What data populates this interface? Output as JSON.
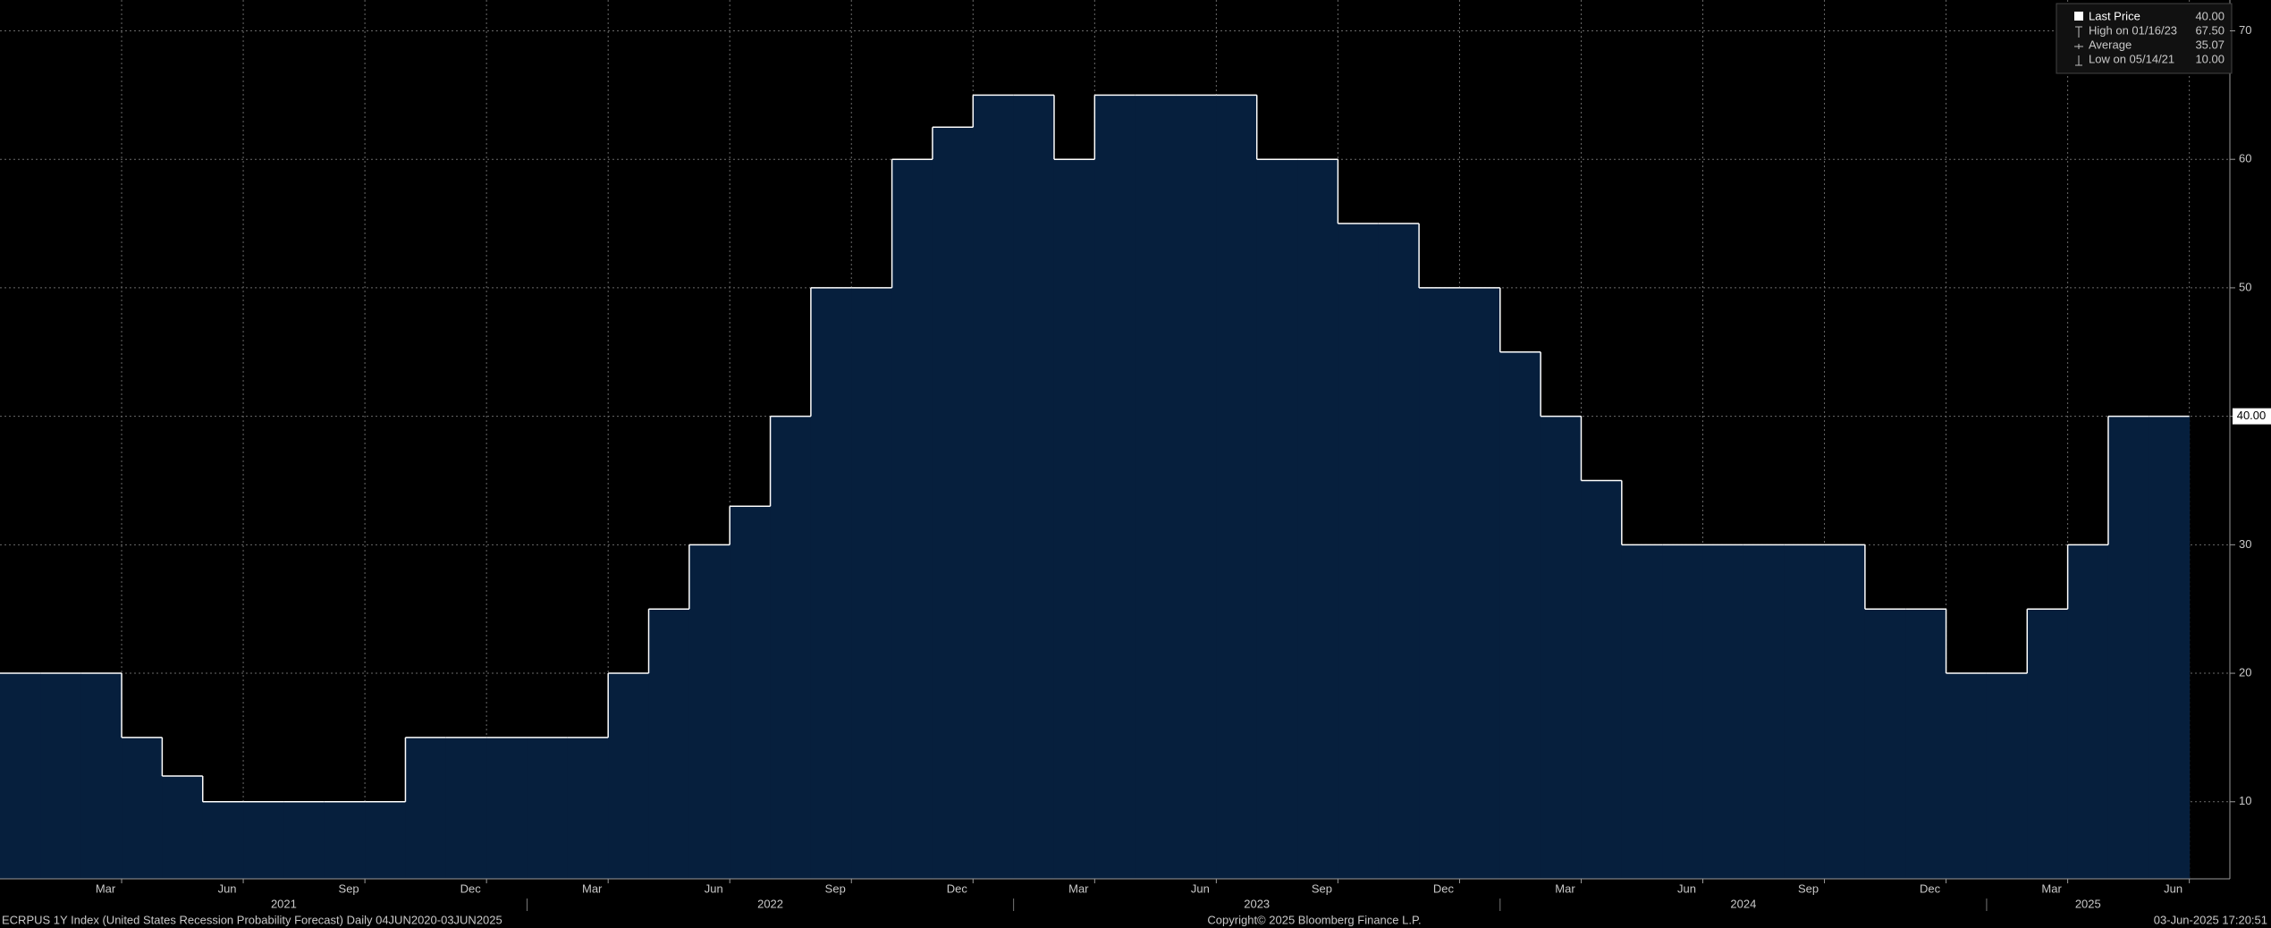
{
  "chart_data": {
    "type": "step-area",
    "x": [
      "2020-12",
      "2021-01",
      "2021-02",
      "2021-03",
      "2021-04",
      "2021-05",
      "2021-06",
      "2021-07",
      "2021-08",
      "2021-09",
      "2021-10",
      "2021-11",
      "2021-12",
      "2022-01",
      "2022-02",
      "2022-03",
      "2022-04",
      "2022-05",
      "2022-06",
      "2022-07",
      "2022-08",
      "2022-09",
      "2022-10",
      "2022-11",
      "2022-12",
      "2023-01",
      "2023-02",
      "2023-03",
      "2023-04",
      "2023-05",
      "2023-06",
      "2023-07",
      "2023-08",
      "2023-09",
      "2023-10",
      "2023-11",
      "2023-12",
      "2024-01",
      "2024-02",
      "2024-03",
      "2024-04",
      "2024-05",
      "2024-06",
      "2024-07",
      "2024-08",
      "2024-09",
      "2024-10",
      "2024-11",
      "2024-12",
      "2025-01",
      "2025-02",
      "2025-03",
      "2025-04",
      "2025-05"
    ],
    "values": [
      20,
      20,
      20,
      15,
      12,
      10,
      10,
      10,
      10,
      10,
      15,
      15,
      15,
      15,
      15,
      20,
      25,
      30,
      33,
      40,
      50,
      50,
      60,
      62.5,
      65,
      65,
      60,
      65,
      65,
      65,
      65,
      60,
      60,
      55,
      55,
      50,
      50,
      45,
      40,
      35,
      30,
      30,
      30,
      30,
      30,
      30,
      25,
      25,
      20,
      20,
      25,
      30,
      40,
      40
    ],
    "color": "#061f3d",
    "line_color": "#ffffff",
    "xlim": [
      "2020-12",
      "2025-07"
    ],
    "xticks": [
      {
        "value": "2021-03",
        "label": "Mar"
      },
      {
        "value": "2021-06",
        "label": "Jun"
      },
      {
        "value": "2021-09",
        "label": "Sep"
      },
      {
        "value": "2021-12",
        "label": "Dec"
      },
      {
        "value": "2022-03",
        "label": "Mar"
      },
      {
        "value": "2022-06",
        "label": "Jun"
      },
      {
        "value": "2022-09",
        "label": "Sep"
      },
      {
        "value": "2022-12",
        "label": "Dec"
      },
      {
        "value": "2023-03",
        "label": "Mar"
      },
      {
        "value": "2023-06",
        "label": "Jun"
      },
      {
        "value": "2023-09",
        "label": "Sep"
      },
      {
        "value": "2023-12",
        "label": "Dec"
      },
      {
        "value": "2024-03",
        "label": "Mar"
      },
      {
        "value": "2024-06",
        "label": "Jun"
      },
      {
        "value": "2024-09",
        "label": "Sep"
      },
      {
        "value": "2024-12",
        "label": "Dec"
      },
      {
        "value": "2025-03",
        "label": "Mar"
      },
      {
        "value": "2025-06",
        "label": "Jun"
      }
    ],
    "year_labels": [
      "2021",
      "2022",
      "2023",
      "2024",
      "2025"
    ],
    "ylim": [
      4,
      72.4
    ],
    "yticks": [
      10,
      20,
      30,
      40,
      50,
      60,
      70
    ],
    "grid": true,
    "last_price_label": "40.00",
    "legend": [
      {
        "name": "Last Price",
        "value": "40.00"
      },
      {
        "name": "High on 01/16/23",
        "value": "67.50"
      },
      {
        "name": "Average",
        "value": "35.07"
      },
      {
        "name": "Low on 05/14/21",
        "value": "10.00"
      }
    ],
    "footer": {
      "left": "ECRPUS 1Y Index (United States Recession Probability Forecast)  Daily 04JUN2020-03JUN2025",
      "center": "Copyright© 2025 Bloomberg Finance L.P.",
      "right": "03-Jun-2025 17:20:51"
    }
  }
}
